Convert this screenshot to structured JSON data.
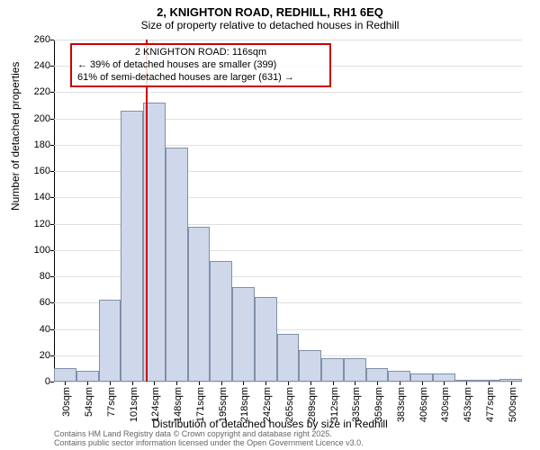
{
  "title": "2, KNIGHTON ROAD, REDHILL, RH1 6EQ",
  "subtitle": "Size of property relative to detached houses in Redhill",
  "y_axis": {
    "label": "Number of detached properties",
    "min": 0,
    "max": 260,
    "tick_step": 20,
    "ticks": [
      0,
      20,
      40,
      60,
      80,
      100,
      120,
      140,
      160,
      180,
      200,
      220,
      240,
      260
    ],
    "grid_color": "#e0e0e0"
  },
  "x_axis": {
    "label": "Distribution of detached houses by size in Redhill",
    "categories": [
      "30sqm",
      "54sqm",
      "77sqm",
      "101sqm",
      "124sqm",
      "148sqm",
      "171sqm",
      "195sqm",
      "218sqm",
      "242sqm",
      "265sqm",
      "289sqm",
      "312sqm",
      "335sqm",
      "359sqm",
      "383sqm",
      "406sqm",
      "430sqm",
      "453sqm",
      "477sqm",
      "500sqm"
    ]
  },
  "bars": {
    "values": [
      10,
      8,
      62,
      206,
      212,
      178,
      118,
      92,
      72,
      64,
      36,
      24,
      18,
      18,
      10,
      8,
      6,
      6,
      0,
      0,
      2
    ],
    "fill_color": "#cfd8eb",
    "border_color": "#808fa8",
    "width_fraction": 1.0
  },
  "marker": {
    "category_index": 4,
    "offset_within_bar": -0.35,
    "color": "#cc0000"
  },
  "callout": {
    "lines": [
      "2 KNIGHTON ROAD: 116sqm",
      "← 39% of detached houses are smaller (399)",
      "61% of semi-detached houses are larger (631) →"
    ],
    "border_color": "#cc0000"
  },
  "footer": {
    "line1": "Contains HM Land Registry data © Crown copyright and database right 2025.",
    "line2": "Contains public sector information licensed under the Open Government Licence v3.0."
  },
  "style": {
    "background_color": "#ffffff",
    "title_fontsize": 13,
    "subtitle_fontsize": 12,
    "axis_label_fontsize": 12,
    "tick_fontsize": 11
  }
}
